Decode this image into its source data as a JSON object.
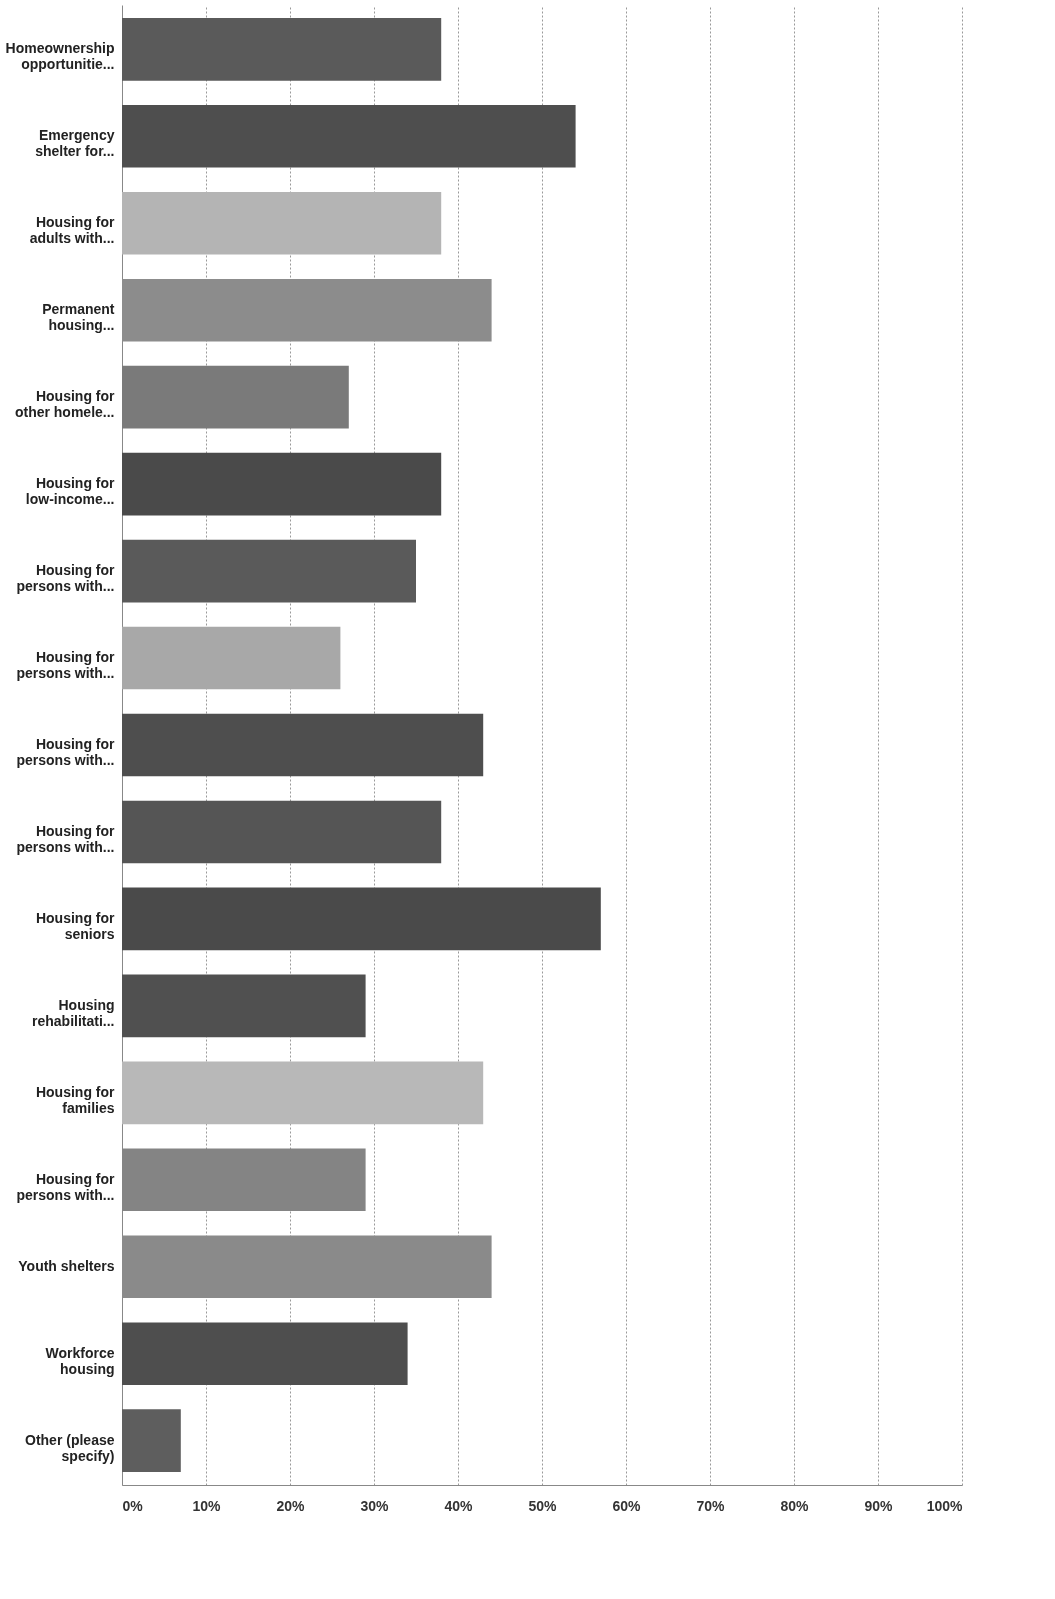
{
  "chart_data": {
    "type": "bar",
    "orientation": "horizontal",
    "categories": [
      "Homeownership\nopportunitie...",
      "Emergency\nshelter for...",
      "Housing for\nadults with...",
      "Permanent\nhousing...",
      "Housing for\nother homele...",
      "Housing for\nlow-income...",
      "Housing for\npersons with...",
      "Housing for\npersons with...",
      "Housing for\npersons with...",
      "Housing for\npersons with...",
      "Housing for\nseniors",
      "Housing\nrehabilitati...",
      "Housing for\nfamilies",
      "Housing for\npersons with...",
      "Youth shelters",
      "Workforce\nhousing",
      "Other (please\nspecify)"
    ],
    "values": [
      38,
      54,
      38,
      44,
      27,
      38,
      35,
      26,
      43,
      38,
      57,
      29,
      43,
      29,
      44,
      34,
      7
    ],
    "colors": [
      "#5a5a5a",
      "#4e4e4e",
      "#b4b4b4",
      "#8c8c8c",
      "#7a7a7a",
      "#4a4a4a",
      "#5a5a5a",
      "#a8a8a8",
      "#4e4e4e",
      "#555555",
      "#4a4a4a",
      "#505050",
      "#b8b8b8",
      "#848484",
      "#8a8a8a",
      "#4e4e4e",
      "#5e5e5e"
    ],
    "xlim": [
      0,
      100
    ],
    "xticks": [
      {
        "value": 0,
        "label": "0%"
      },
      {
        "value": 10,
        "label": "10%"
      },
      {
        "value": 20,
        "label": "20%"
      },
      {
        "value": 30,
        "label": "30%"
      },
      {
        "value": 40,
        "label": "40%"
      },
      {
        "value": 50,
        "label": "50%"
      },
      {
        "value": 60,
        "label": "60%"
      },
      {
        "value": 70,
        "label": "70%"
      },
      {
        "value": 80,
        "label": "80%"
      },
      {
        "value": 90,
        "label": "90%"
      },
      {
        "value": 100,
        "label": "100%"
      }
    ],
    "grid": "x"
  }
}
